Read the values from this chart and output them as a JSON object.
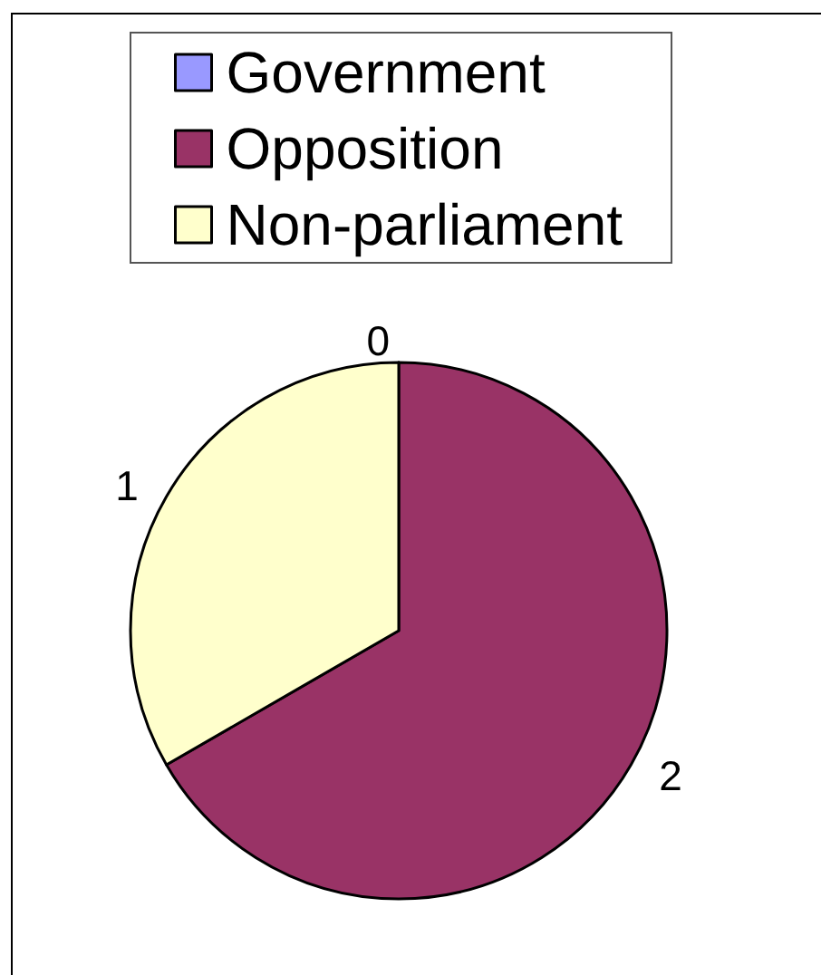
{
  "chart_data": {
    "type": "pie",
    "categories": [
      "Government",
      "Opposition",
      "Non-parliament"
    ],
    "values": [
      0,
      2,
      1
    ],
    "value_labels": [
      "0",
      "2",
      "1"
    ],
    "colors": [
      "#9999ff",
      "#993366",
      "#ffffcc"
    ],
    "legend": "top"
  }
}
